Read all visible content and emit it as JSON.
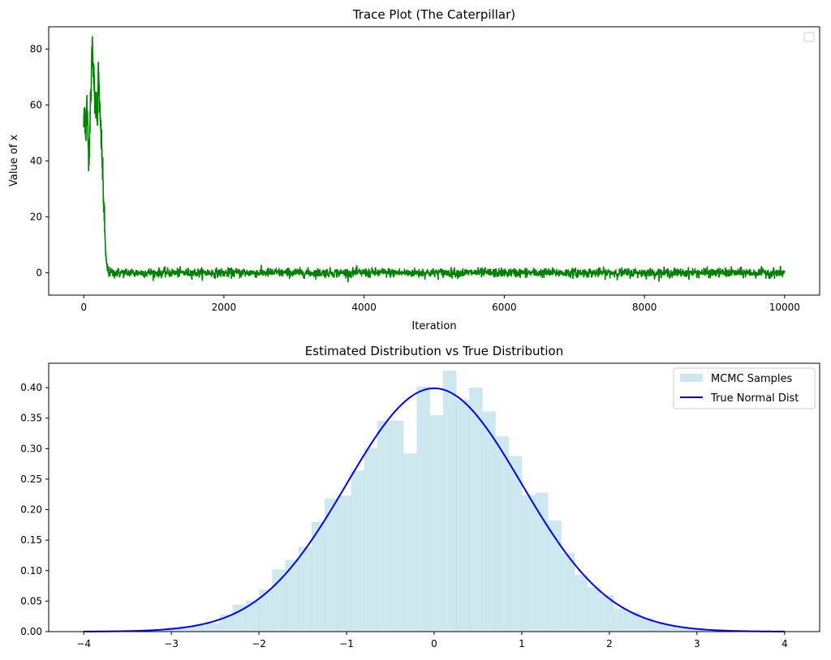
{
  "chart_data": [
    {
      "type": "line",
      "title": "Trace Plot (The Caterpillar)",
      "xlabel": "Iteration",
      "ylabel": "Value of x",
      "xlim": [
        -500,
        10500
      ],
      "ylim": [
        -8,
        88
      ],
      "xticks": [
        0,
        2000,
        4000,
        6000,
        8000,
        10000
      ],
      "yticks": [
        0,
        20,
        40,
        60,
        80
      ],
      "line_color": "#008000",
      "series": [
        {
          "name": "trace",
          "x": [
            0,
            15,
            30,
            45,
            60,
            75,
            90,
            105,
            120,
            135,
            150,
            165,
            180,
            195,
            210,
            225,
            240,
            255,
            270,
            285,
            300,
            315,
            330,
            345,
            360
          ],
          "values": [
            53,
            58,
            50,
            61,
            48,
            42,
            55,
            65,
            83,
            76,
            66,
            58,
            62,
            55,
            73,
            60,
            52,
            46,
            35,
            25,
            15,
            6,
            2,
            1,
            0
          ]
        }
      ],
      "stationary_segment": {
        "x_start": 360,
        "x_end": 10000,
        "mean": 0,
        "std": 1
      },
      "legend": {
        "position": "upper right",
        "entries": []
      }
    },
    {
      "type": "bar",
      "title": "Estimated Distribution vs True Distribution",
      "xlabel": "",
      "ylabel": "",
      "xlim": [
        -4.4,
        4.4
      ],
      "ylim": [
        0,
        0.44
      ],
      "xticks": [
        -4,
        -3,
        -2,
        -1,
        0,
        1,
        2,
        3,
        4
      ],
      "xtick_labels": [
        "−4",
        "−3",
        "−2",
        "−1",
        "0",
        "1",
        "2",
        "3",
        "4"
      ],
      "yticks": [
        0.0,
        0.05,
        0.1,
        0.15,
        0.2,
        0.25,
        0.3,
        0.35,
        0.4
      ],
      "ytick_labels": [
        "0.00",
        "0.05",
        "0.10",
        "0.15",
        "0.20",
        "0.25",
        "0.30",
        "0.35",
        "0.40"
      ],
      "histogram": {
        "name": "MCMC Samples",
        "color": "#add8e6",
        "bin_edges": [
          -3.2,
          -3.05,
          -2.9,
          -2.75,
          -2.6,
          -2.45,
          -2.3,
          -2.15,
          -2.0,
          -1.85,
          -1.7,
          -1.55,
          -1.4,
          -1.25,
          -1.1,
          -0.95,
          -0.8,
          -0.65,
          -0.5,
          -0.35,
          -0.2,
          -0.05,
          0.1,
          0.25,
          0.4,
          0.55,
          0.7,
          0.85,
          1.0,
          1.15,
          1.3,
          1.45,
          1.6,
          1.75,
          1.9,
          2.05,
          2.2,
          2.35,
          2.5,
          2.65,
          2.8,
          2.95,
          3.1
        ],
        "heights": [
          0.004,
          0.007,
          0.009,
          0.011,
          0.014,
          0.028,
          0.044,
          0.051,
          0.069,
          0.102,
          0.118,
          0.139,
          0.18,
          0.218,
          0.223,
          0.264,
          0.301,
          0.346,
          0.346,
          0.292,
          0.402,
          0.355,
          0.428,
          0.38,
          0.4,
          0.361,
          0.32,
          0.288,
          0.224,
          0.228,
          0.182,
          0.129,
          0.093,
          0.073,
          0.06,
          0.038,
          0.032,
          0.022,
          0.015,
          0.01,
          0.006,
          0.004
        ]
      },
      "series": [
        {
          "name": "True Normal Dist",
          "color": "#0000ff",
          "function": "normal_pdf",
          "mu": 0,
          "sigma": 1,
          "x_range": [
            -4,
            4
          ]
        }
      ],
      "legend": {
        "position": "upper right",
        "entries": [
          "MCMC Samples",
          "True Normal Dist"
        ]
      }
    }
  ]
}
